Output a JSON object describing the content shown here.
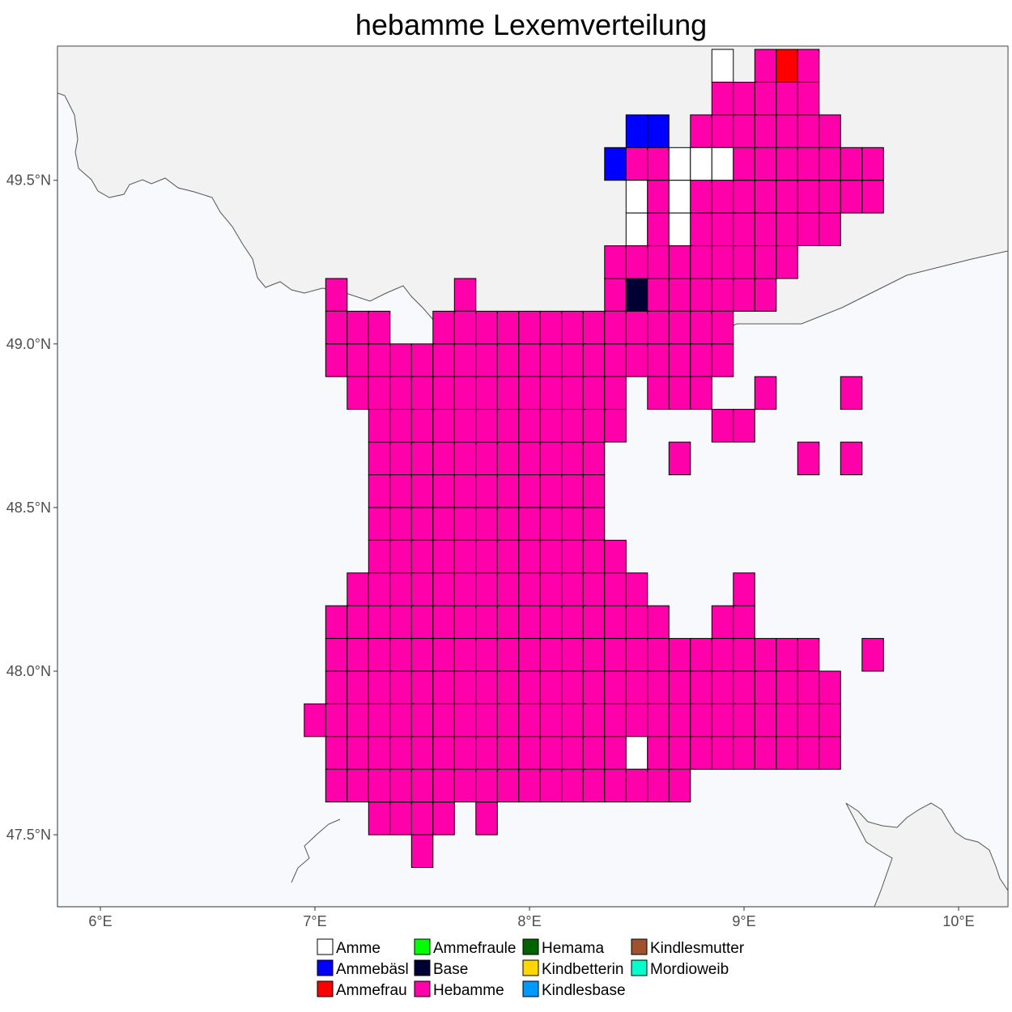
{
  "title": "hebamme Lexemverteilung",
  "colors": {
    "panel_background": "#f8f9fd",
    "neighbor_land": "#f2f2f2",
    "border": "#555555"
  },
  "axes": {
    "x_ticks": [
      {
        "value": 6,
        "label": "6°E"
      },
      {
        "value": 7,
        "label": "7°E"
      },
      {
        "value": 8,
        "label": "8°E"
      },
      {
        "value": 9,
        "label": "9°E"
      },
      {
        "value": 10,
        "label": "10°E"
      }
    ],
    "y_ticks": [
      {
        "value": 49.5,
        "label": "49.5°N"
      },
      {
        "value": 49.0,
        "label": "49.0°N"
      },
      {
        "value": 48.5,
        "label": "48.5°N"
      },
      {
        "value": 48.0,
        "label": "48.0°N"
      },
      {
        "value": 47.5,
        "label": "47.5°N"
      }
    ],
    "x_range": [
      5.8,
      10.23
    ],
    "y_range": [
      47.28,
      49.91
    ]
  },
  "legend": [
    {
      "key": "A",
      "label": "Amme",
      "color": "#ffffff"
    },
    {
      "key": "B",
      "label": "Ammebäsl",
      "color": "#0000ff"
    },
    {
      "key": "R",
      "label": "Ammefrau",
      "color": "#ff0000"
    },
    {
      "key": "G",
      "label": "Ammefraule",
      "color": "#00ff00"
    },
    {
      "key": "N",
      "label": "Base",
      "color": "#000033"
    },
    {
      "key": "H",
      "label": "Hebamme",
      "color": "#ff00aa"
    },
    {
      "key": "D",
      "label": "Hemama",
      "color": "#006400"
    },
    {
      "key": "Y",
      "label": "Kindbetterin",
      "color": "#ffd700"
    },
    {
      "key": "C",
      "label": "Kindlesbase",
      "color": "#0099ff"
    },
    {
      "key": "S",
      "label": "Kindlesmutter",
      "color": "#a0522d"
    },
    {
      "key": "T",
      "label": "Mordioweib",
      "color": "#00ffcc"
    }
  ],
  "grid": {
    "lon0": 6.85,
    "dlon": 0.1,
    "lat_top": 49.9,
    "dlat": 0.1,
    "rows": [
      "                    A HRH     ",
      "                    HHHHH     ",
      "                BB HHHHHHH    ",
      "               BHHAAAHHHHHHH  ",
      "                AHAHHHHHHHHH  ",
      "                AHAHHHHHHH    ",
      "               HHHHHHHHH      ",
      "  H     H      HNHHHHHH       ",
      "  HHH  HHHHHHHHHHHHHH        ",
      "  HHHHHHHHHHHHHHHHHHH        ",
      "   HHHHHHHHHHHHH HHH  H   H   ",
      "    HHHHHHHHHHHH    HH        ",
      "    HHHHHHHHHHH   H     H H   ",
      "    HHHHHHHHHHH               ",
      "    HHHHHHHHHHH               ",
      "    HHHHHHHHHHHH              ",
      "   HHHHHHHHHHHHHH    H        ",
      "  HHHHHHHHHHHHHHHH  HH        ",
      "  HHHHHHHHHHHHHHHHHHHHHHH  H  ",
      "  HHHHHHHHHHHHHHHHHHHHHHHH    ",
      " HHHHHHHHHHHHHHHHHHHHHHHHH    ",
      "  HHHHHHHHHHHHHHAHHHHHHHHH    ",
      "  HHHHHHHHHHHHHHHHH           ",
      "    HHHH H                    ",
      "      H                       "
    ]
  }
}
